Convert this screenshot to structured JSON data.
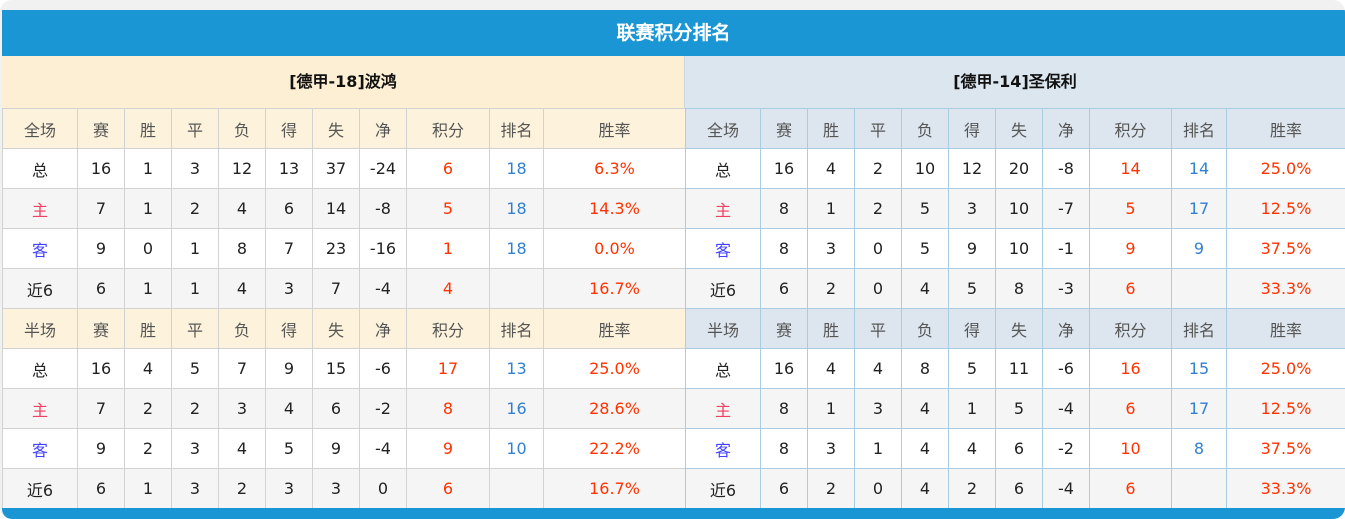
{
  "title": "联赛积分排名",
  "headers_full": [
    "全场",
    "赛",
    "胜",
    "平",
    "负",
    "得",
    "失",
    "净",
    "积分",
    "排名",
    "胜率"
  ],
  "headers_half": [
    "半场",
    "赛",
    "胜",
    "平",
    "负",
    "得",
    "失",
    "净",
    "积分",
    "排名",
    "胜率"
  ],
  "colors": {
    "header": "#1a96d4",
    "points": "#ff3300",
    "rank": "#3380d0",
    "home": "#f04060",
    "away": "#4444ff"
  },
  "teams": [
    {
      "name": "[德甲-18]波鸿",
      "full": [
        [
          "总",
          "16",
          "1",
          "3",
          "12",
          "13",
          "37",
          "-24",
          "6",
          "18",
          "6.3%"
        ],
        [
          "主",
          "7",
          "1",
          "2",
          "4",
          "6",
          "14",
          "-8",
          "5",
          "18",
          "14.3%"
        ],
        [
          "客",
          "9",
          "0",
          "1",
          "8",
          "7",
          "23",
          "-16",
          "1",
          "18",
          "0.0%"
        ],
        [
          "近6",
          "6",
          "1",
          "1",
          "4",
          "3",
          "7",
          "-4",
          "4",
          "",
          "16.7%"
        ]
      ],
      "half": [
        [
          "总",
          "16",
          "4",
          "5",
          "7",
          "9",
          "15",
          "-6",
          "17",
          "13",
          "25.0%"
        ],
        [
          "主",
          "7",
          "2",
          "2",
          "3",
          "4",
          "6",
          "-2",
          "8",
          "16",
          "28.6%"
        ],
        [
          "客",
          "9",
          "2",
          "3",
          "4",
          "5",
          "9",
          "-4",
          "9",
          "10",
          "22.2%"
        ],
        [
          "近6",
          "6",
          "1",
          "3",
          "2",
          "3",
          "3",
          "0",
          "6",
          "",
          "16.7%"
        ]
      ]
    },
    {
      "name": "[德甲-14]圣保利",
      "full": [
        [
          "总",
          "16",
          "4",
          "2",
          "10",
          "12",
          "20",
          "-8",
          "14",
          "14",
          "25.0%"
        ],
        [
          "主",
          "8",
          "1",
          "2",
          "5",
          "3",
          "10",
          "-7",
          "5",
          "17",
          "12.5%"
        ],
        [
          "客",
          "8",
          "3",
          "0",
          "5",
          "9",
          "10",
          "-1",
          "9",
          "9",
          "37.5%"
        ],
        [
          "近6",
          "6",
          "2",
          "0",
          "4",
          "5",
          "8",
          "-3",
          "6",
          "",
          "33.3%"
        ]
      ],
      "half": [
        [
          "总",
          "16",
          "4",
          "4",
          "8",
          "5",
          "11",
          "-6",
          "16",
          "15",
          "25.0%"
        ],
        [
          "主",
          "8",
          "1",
          "3",
          "4",
          "1",
          "5",
          "-4",
          "6",
          "17",
          "12.5%"
        ],
        [
          "客",
          "8",
          "3",
          "1",
          "4",
          "4",
          "6",
          "-2",
          "10",
          "8",
          "37.5%"
        ],
        [
          "近6",
          "6",
          "2",
          "0",
          "4",
          "2",
          "6",
          "-4",
          "6",
          "",
          "33.3%"
        ]
      ]
    }
  ]
}
